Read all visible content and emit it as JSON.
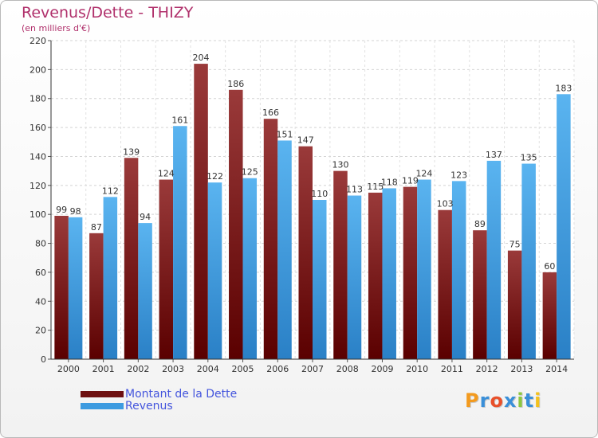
{
  "chart_data": {
    "type": "bar",
    "title": "Revenus/Dette - THIZY",
    "subtitle": "(en milliers d'€)",
    "categories": [
      "2000",
      "2001",
      "2002",
      "2003",
      "2004",
      "2005",
      "2006",
      "2007",
      "2008",
      "2009",
      "2010",
      "2011",
      "2012",
      "2013",
      "2014"
    ],
    "series": [
      {
        "name": "Montant de la Dette",
        "color": "#7a1c1c",
        "values": [
          99,
          87,
          139,
          124,
          204,
          186,
          166,
          147,
          130,
          115,
          119,
          103,
          89,
          75,
          60
        ]
      },
      {
        "name": "Revenus",
        "color": "#4aa6e6",
        "values": [
          98,
          112,
          94,
          161,
          122,
          125,
          151,
          110,
          113,
          118,
          124,
          123,
          137,
          135,
          183
        ]
      }
    ],
    "ylim": [
      0,
      220
    ],
    "yticks": [
      0,
      20,
      40,
      60,
      80,
      100,
      120,
      140,
      160,
      180,
      200,
      220
    ],
    "grid": true,
    "legend": "bottom-left"
  },
  "legend": {
    "items": [
      {
        "label": "Montant de la Dette",
        "color": "#6e1010"
      },
      {
        "label": "Revenus",
        "color": "#3d9be0"
      }
    ]
  },
  "logo": {
    "letters": [
      "P",
      "r",
      "o",
      "x",
      "i",
      "t",
      "i"
    ],
    "colors": [
      "#f39a1e",
      "#3a8fd8",
      "#e8502a",
      "#3a8fd8",
      "#8cc63f",
      "#3a8fd8",
      "#f3c11e"
    ]
  }
}
